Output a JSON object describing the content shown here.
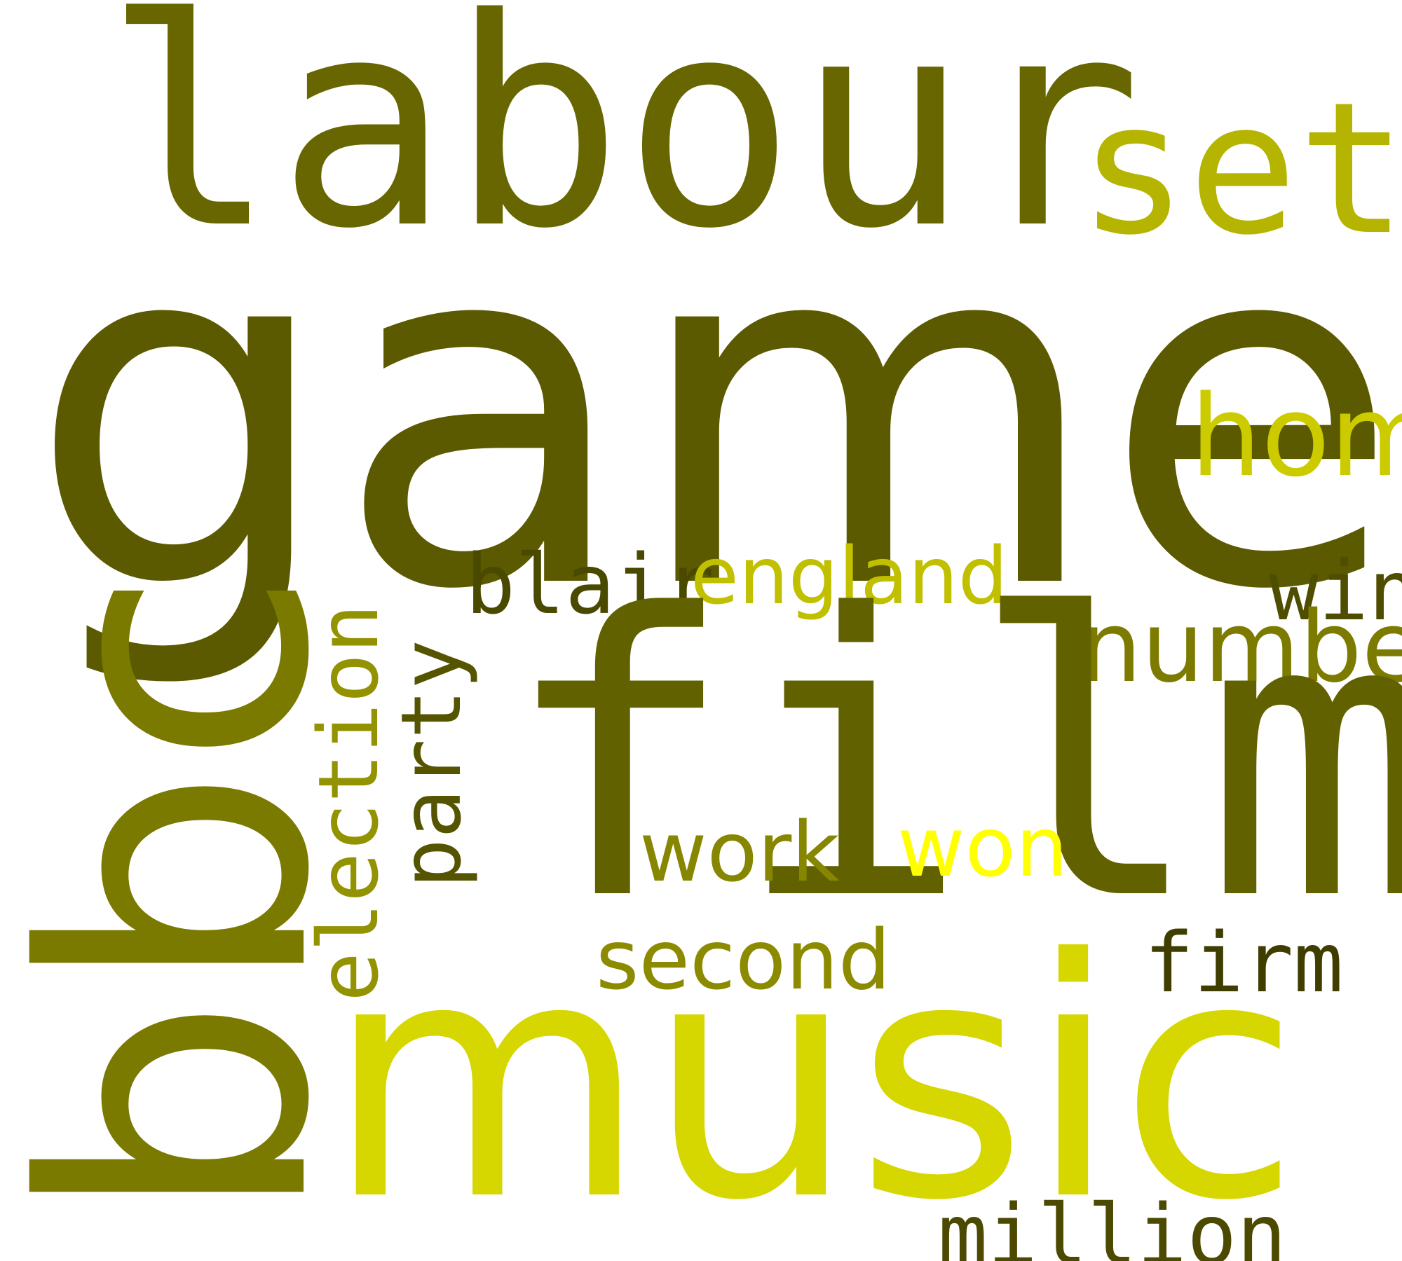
{
  "words": {
    "labour": {
      "text": "labour",
      "color": "#676600"
    },
    "set": {
      "text": "set",
      "color": "#b5b400"
    },
    "game": {
      "text": "game",
      "color": "#5b5a00"
    },
    "home": {
      "text": "home",
      "color": "#cccb00"
    },
    "bbc": {
      "text": "bbc",
      "color": "#7a7900"
    },
    "election": {
      "text": "election",
      "color": "#939200"
    },
    "party": {
      "text": "party",
      "color": "#555400"
    },
    "blair": {
      "text": "blair",
      "color": "#4a4900"
    },
    "england": {
      "text": "england",
      "color": "#c0bf00"
    },
    "win": {
      "text": "win",
      "color": "#4f4e00"
    },
    "number": {
      "text": "number",
      "color": "#7c7b00"
    },
    "film": {
      "text": "film",
      "color": "#626100"
    },
    "work": {
      "text": "work",
      "color": "#878600"
    },
    "won": {
      "text": "won",
      "color": "#ffff00"
    },
    "second": {
      "text": "second",
      "color": "#8c8b00"
    },
    "firm": {
      "text": "firm",
      "color": "#3f3e00"
    },
    "music": {
      "text": "music",
      "color": "#d6d600"
    },
    "million": {
      "text": "million",
      "color": "#4b4a00"
    }
  }
}
